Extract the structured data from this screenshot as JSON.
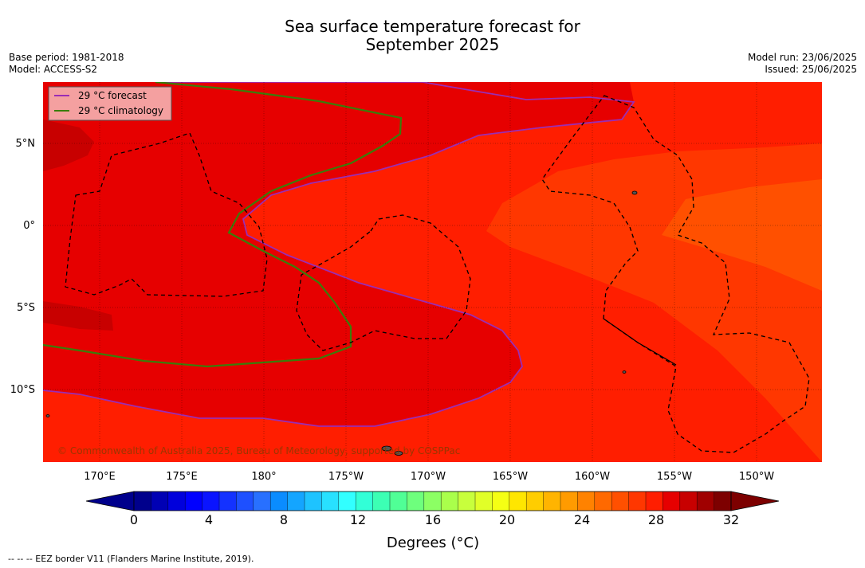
{
  "title_line1": "Sea surface temperature forecast for",
  "title_line2": "September 2025",
  "base_period": "Base period: 1981-2018",
  "model": "Model: ACCESS-S2",
  "model_run": "Model run: 23/06/2025",
  "issued": "Issued: 25/06/2025",
  "legend": {
    "forecast_label": "29 °C  forecast",
    "climatology_label": "29 °C  climatology",
    "forecast_color": "#9a2db5",
    "climatology_color": "#3a7d0a"
  },
  "lat_ticks": [
    "5°N",
    "0°",
    "5°S",
    "10°S"
  ],
  "lon_ticks": [
    "170°E",
    "175°E",
    "180°",
    "175°W",
    "170°W",
    "165°W",
    "160°W",
    "155°W",
    "150°W"
  ],
  "colorbar": {
    "ticks": [
      "0",
      "4",
      "8",
      "12",
      "16",
      "20",
      "24",
      "28",
      "32"
    ],
    "label": "Degrees (°C)",
    "colors": [
      "#00008c",
      "#0000b4",
      "#0000dc",
      "#0000ff",
      "#0a14ff",
      "#1432ff",
      "#1e50ff",
      "#2870ff",
      "#0a8cff",
      "#14a5ff",
      "#1ec3ff",
      "#28e1ff",
      "#32ffff",
      "#32ffd7",
      "#3cffb4",
      "#50ff96",
      "#6eff7d",
      "#8cff64",
      "#aaff4b",
      "#c8ff3c",
      "#e1ff28",
      "#f5ff14",
      "#ffe600",
      "#ffcd00",
      "#ffb400",
      "#ff9b00",
      "#ff8200",
      "#ff6900",
      "#ff5000",
      "#ff3700",
      "#ff1e00",
      "#e60000",
      "#c80000",
      "#a00000",
      "#7d0000"
    ]
  },
  "credit": "© Commonwealth of Australia 2025, Bureau of Meteorology, supported by COSPPac",
  "footer": "--  --  -- EEZ border V11 (Flanders Marine Institute, 2019)."
}
